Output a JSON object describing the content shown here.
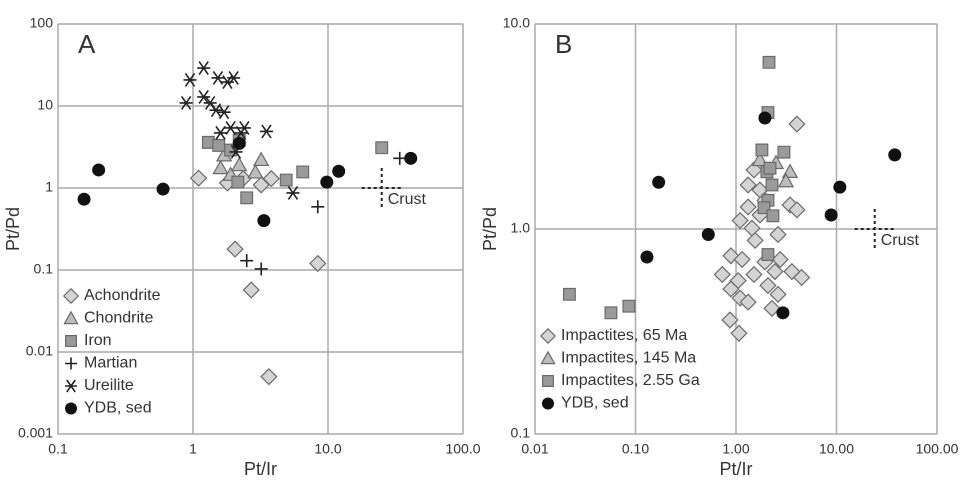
{
  "chart_data": [
    {
      "type": "scatter",
      "title": "A",
      "x_label": "Pt/Ir",
      "y_label": "Pt/Pd",
      "log_x": true,
      "log_y": true,
      "grid": true,
      "legend": "lower left",
      "xlim": [
        0.1,
        100
      ],
      "ylim": [
        0.001,
        100
      ],
      "xticks": [
        0.1,
        1,
        {
          "value": 10,
          "label": "10.0"
        },
        {
          "value": 100,
          "label": "100.0"
        }
      ],
      "yticks": [
        0.001,
        0.01,
        0.1,
        1,
        10,
        100
      ],
      "crust": {
        "label": "Crust",
        "x": 25,
        "y": 1
      },
      "series": [
        {
          "name": "Achondrite",
          "marker": "diamond",
          "color": "#d4d4d4",
          "x": [
            1.1,
            2.05,
            2.7,
            8.4,
            3.65,
            1.8,
            2.35,
            3.8,
            3.2
          ],
          "values": [
            1.32,
            0.18,
            0.057,
            0.12,
            0.005,
            1.15,
            1.3,
            1.3,
            1.09
          ]
        },
        {
          "name": "Chondrite",
          "marker": "triangle",
          "color": "#bdbdbd",
          "x": [
            1.6,
            1.9,
            2.2,
            3.2,
            2.9,
            1.7
          ],
          "values": [
            1.75,
            1.45,
            1.9,
            2.2,
            1.55,
            2.5
          ]
        },
        {
          "name": "Iron",
          "marker": "square",
          "color": "#9a9a9a",
          "x": [
            1.3,
            1.55,
            1.9,
            2.15,
            2.5,
            4.9,
            6.5,
            25,
            2.2
          ],
          "values": [
            3.6,
            3.3,
            2.9,
            1.18,
            0.76,
            1.25,
            1.57,
            3.1,
            3.8
          ]
        },
        {
          "name": "Martian",
          "marker": "plus",
          "color": "#222222",
          "x": [
            34,
            2.5,
            3.2,
            8.4
          ],
          "values": [
            2.3,
            0.13,
            0.103,
            0.59
          ]
        },
        {
          "name": "Ureilite",
          "marker": "asterisk",
          "color": "#222222",
          "x": [
            0.95,
            1.2,
            1.2,
            1.53,
            1.8,
            2.0,
            0.89,
            1.34,
            1.48,
            1.7,
            1.6,
            1.9,
            2.27,
            2.4,
            3.5,
            2.08,
            5.5
          ],
          "values": [
            20.8,
            29,
            12.9,
            22,
            19.6,
            22,
            10.9,
            10.9,
            8.9,
            8.4,
            4.7,
            5.4,
            4.7,
            5.4,
            4.9,
            2.75,
            0.87
          ]
        },
        {
          "name": "YDB, sed",
          "marker": "circle",
          "color": "#111111",
          "x": [
            0.156,
            0.2,
            0.6,
            2.2,
            3.35,
            9.8,
            12,
            41
          ],
          "values": [
            0.73,
            1.66,
            0.97,
            3.5,
            0.4,
            1.18,
            1.6,
            2.3
          ]
        }
      ]
    },
    {
      "type": "scatter",
      "title": "B",
      "x_label": "Pt/Ir",
      "y_label": "Pt/Pd",
      "log_x": true,
      "log_y": true,
      "grid": true,
      "legend": "lower left",
      "xlim": [
        0.01,
        100
      ],
      "ylim": [
        0.1,
        10
      ],
      "xticks": [
        0.01,
        {
          "value": 0.1,
          "label": "0.10"
        },
        {
          "value": 1,
          "label": "1.00"
        },
        {
          "value": 10,
          "label": "10.00"
        },
        {
          "value": 100,
          "label": "100.00"
        }
      ],
      "yticks": [
        0.1,
        {
          "value": 1,
          "label": "1.0"
        },
        {
          "value": 10,
          "label": "10.0"
        }
      ],
      "crust": {
        "label": "Crust",
        "x": 24,
        "y": 1
      },
      "series": [
        {
          "name": "Impactites, 65 Ma",
          "marker": "diamond",
          "color": "#d4d4d4",
          "x": [
            4.04,
            0.89,
            1.32,
            1.1,
            1.73,
            1.55,
            1.15,
            0.73,
            1.05,
            1.51,
            1.94,
            2.44,
            3.6,
            4.5,
            0.87,
            1.07,
            1.1,
            0.89,
            1.32,
            2.08,
            2.28,
            2.62,
            2.75,
            1.73,
            1.51,
            1.94,
            2.62,
            3.45,
            4.04,
            1.32,
            1.44
          ],
          "values": [
            3.25,
            0.74,
            1.28,
            1.1,
            1.17,
            0.88,
            0.71,
            0.6,
            0.56,
            0.6,
            0.69,
            0.62,
            0.62,
            0.58,
            0.36,
            0.31,
            0.46,
            0.51,
            0.44,
            0.53,
            0.41,
            0.48,
            0.71,
            1.55,
            1.94,
            1.38,
            0.94,
            1.31,
            1.24,
            1.64,
            1.01
          ]
        },
        {
          "name": "Impactites, 145 Ma",
          "marker": "triangle",
          "color": "#bdbdbd",
          "x": [
            3.45,
            2.5,
            3.14,
            1.73
          ],
          "values": [
            1.9,
            2.1,
            1.71,
            2.17
          ]
        },
        {
          "name": "Impactites, 2.55 Ga",
          "marker": "square",
          "color": "#9a9a9a",
          "x": [
            0.022,
            0.057,
            0.086,
            2.13,
            2.08,
            1.81,
            2.03,
            2.28,
            2.08,
            1.9,
            2.33,
            2.08,
            3.0,
            2.18
          ],
          "values": [
            0.48,
            0.39,
            0.42,
            6.5,
            3.7,
            2.43,
            1.9,
            1.64,
            1.38,
            1.27,
            1.16,
            0.75,
            2.37,
            1.98
          ]
        },
        {
          "name": "YDB, sed",
          "marker": "circle",
          "color": "#111111",
          "x": [
            0.17,
            0.13,
            0.53,
            1.94,
            2.93,
            8.85,
            10.8,
            38
          ],
          "values": [
            1.69,
            0.73,
            0.94,
            3.48,
            0.39,
            1.17,
            1.6,
            2.3
          ]
        }
      ]
    }
  ]
}
